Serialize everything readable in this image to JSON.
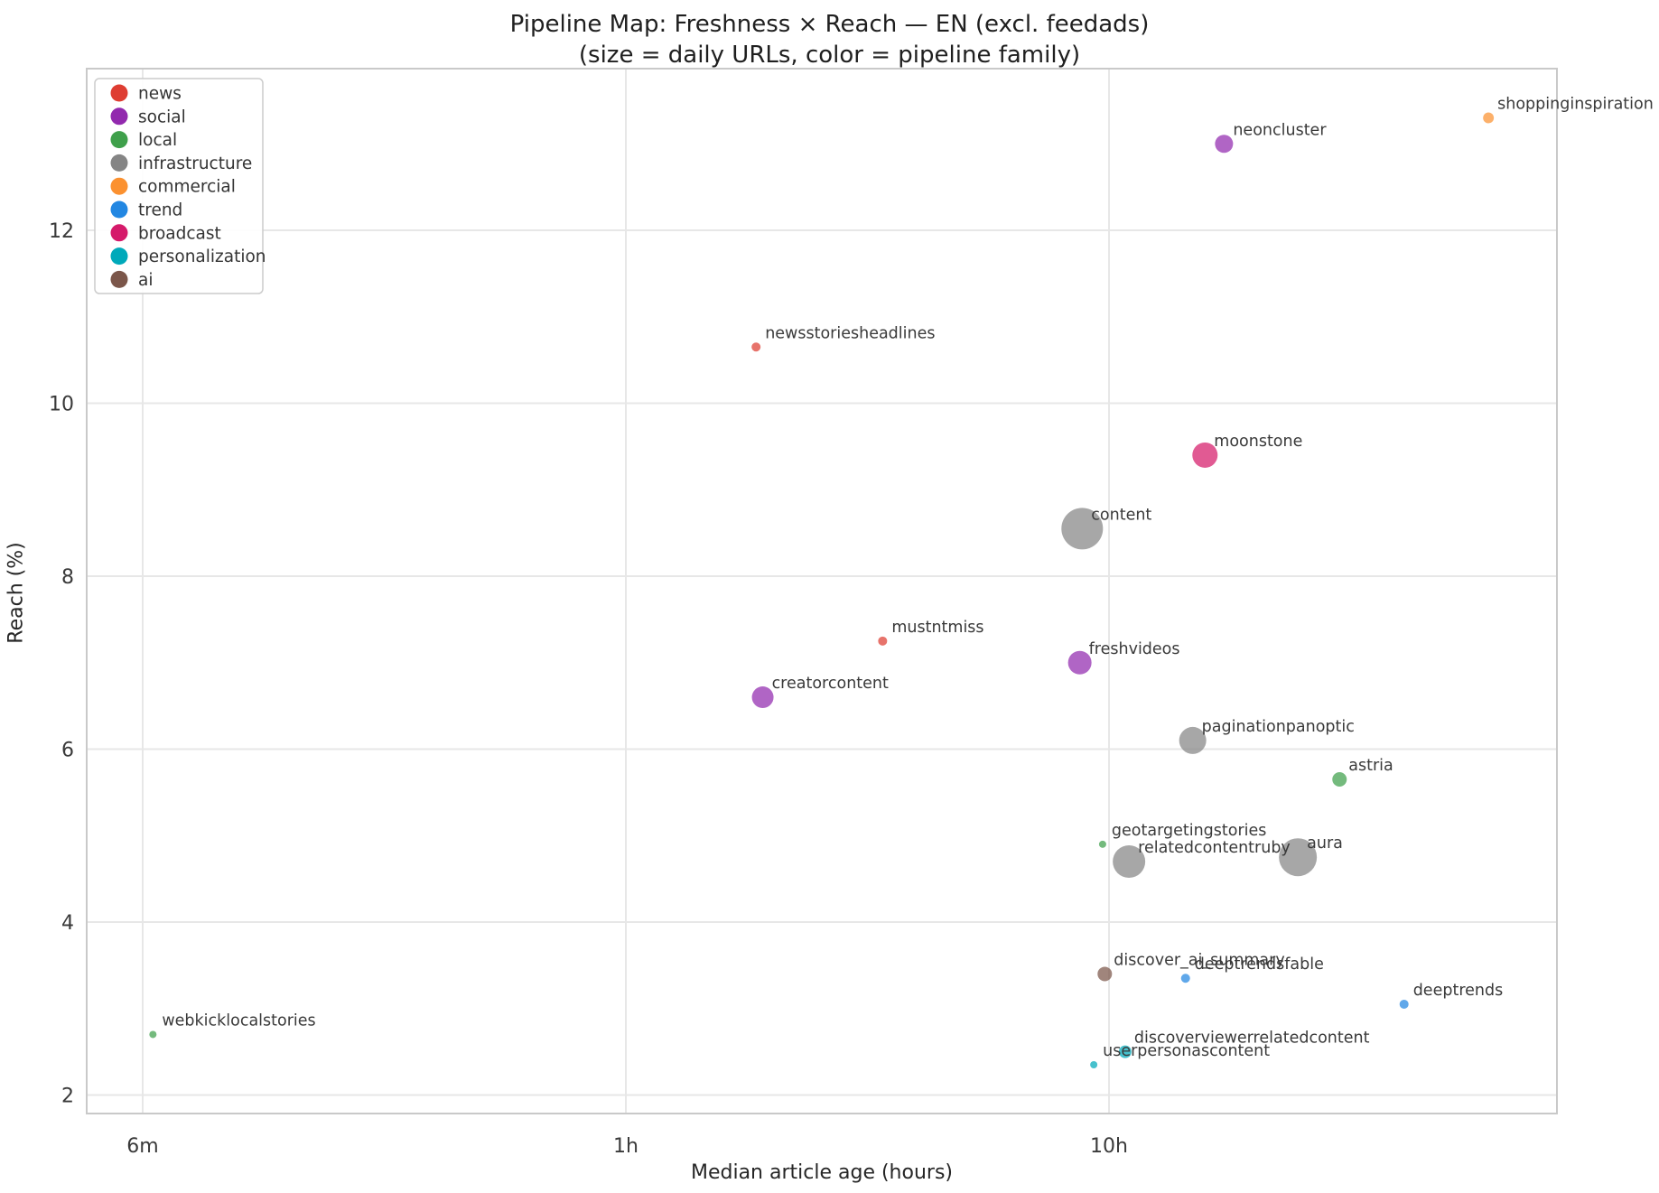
{
  "title": {
    "line1": "Pipeline Map: Freshness × Reach — EN (excl. feedads)",
    "line2": "(size = daily URLs, color = pipeline family)"
  },
  "axes": {
    "x": {
      "label": "Median article age (hours)",
      "scale": "log",
      "ticks": [
        {
          "label": "6m",
          "hours": 0.1
        },
        {
          "label": "1h",
          "hours": 1
        },
        {
          "label": "10h",
          "hours": 10
        }
      ],
      "range_hours": [
        0.076,
        85
      ]
    },
    "y": {
      "label": "Reach (%)",
      "ticks": [
        2,
        4,
        6,
        8,
        10,
        12
      ],
      "range": [
        1.8,
        13.9
      ]
    }
  },
  "legend": {
    "items": [
      {
        "label": "news",
        "color": "#de3d32"
      },
      {
        "label": "social",
        "color": "#9229ae"
      },
      {
        "label": "local",
        "color": "#3fa04b"
      },
      {
        "label": "infrastructure",
        "color": "#858585"
      },
      {
        "label": "commercial",
        "color": "#fb9130"
      },
      {
        "label": "trend",
        "color": "#2287e2"
      },
      {
        "label": "broadcast",
        "color": "#d51a6a"
      },
      {
        "label": "personalization",
        "color": "#00a9ba"
      },
      {
        "label": "ai",
        "color": "#7b564a"
      }
    ]
  },
  "chart_data": {
    "type": "scatter",
    "title": "Pipeline Map: Freshness × Reach — EN (excl. feedads) (size = daily URLs, color = pipeline family)",
    "xlabel": "Median article age (hours)",
    "ylabel": "Reach (%)",
    "x_scale": "log",
    "grid": true,
    "legend_position": "upper left",
    "size_meaning": "daily URLs",
    "color_meaning": "pipeline family",
    "points": [
      {
        "name": "shoppinginspiration",
        "family": "commercial",
        "age_hours": 61.0,
        "reach_pct": 13.3,
        "r": 6
      },
      {
        "name": "neoncluster",
        "family": "social",
        "age_hours": 17.3,
        "reach_pct": 13.0,
        "r": 10
      },
      {
        "name": "newsstoriesheadlines",
        "family": "news",
        "age_hours": 1.86,
        "reach_pct": 10.65,
        "r": 5
      },
      {
        "name": "moonstone",
        "family": "broadcast",
        "age_hours": 15.8,
        "reach_pct": 9.4,
        "r": 14
      },
      {
        "name": "content",
        "family": "infrastructure",
        "age_hours": 8.8,
        "reach_pct": 8.55,
        "r": 23
      },
      {
        "name": "mustntmiss",
        "family": "news",
        "age_hours": 3.4,
        "reach_pct": 7.25,
        "r": 5
      },
      {
        "name": "freshvideos",
        "family": "social",
        "age_hours": 8.7,
        "reach_pct": 7.0,
        "r": 13
      },
      {
        "name": "creatorcontent",
        "family": "social",
        "age_hours": 1.92,
        "reach_pct": 6.6,
        "r": 12
      },
      {
        "name": "paginationpanoptic",
        "family": "infrastructure",
        "age_hours": 14.9,
        "reach_pct": 6.1,
        "r": 15
      },
      {
        "name": "astria",
        "family": "local",
        "age_hours": 30.0,
        "reach_pct": 5.65,
        "r": 8
      },
      {
        "name": "geotargetingstories",
        "family": "local",
        "age_hours": 9.7,
        "reach_pct": 4.9,
        "r": 4
      },
      {
        "name": "relatedcontentruby",
        "family": "infrastructure",
        "age_hours": 11.0,
        "reach_pct": 4.7,
        "r": 18
      },
      {
        "name": "aura",
        "family": "infrastructure",
        "age_hours": 24.6,
        "reach_pct": 4.75,
        "r": 21
      },
      {
        "name": "discover_ai_summary",
        "family": "ai",
        "age_hours": 9.8,
        "reach_pct": 3.4,
        "r": 8
      },
      {
        "name": "deeptrendsfable",
        "family": "trend",
        "age_hours": 14.4,
        "reach_pct": 3.35,
        "r": 5
      },
      {
        "name": "deeptrends",
        "family": "trend",
        "age_hours": 40.8,
        "reach_pct": 3.05,
        "r": 5
      },
      {
        "name": "webkicklocalstories",
        "family": "local",
        "age_hours": 0.105,
        "reach_pct": 2.7,
        "r": 4
      },
      {
        "name": "discoverviewerrelatedcontent",
        "family": "personalization",
        "age_hours": 10.8,
        "reach_pct": 2.5,
        "r": 7
      },
      {
        "name": "userpersonascontent",
        "family": "personalization",
        "age_hours": 9.3,
        "reach_pct": 2.35,
        "r": 4
      }
    ]
  }
}
